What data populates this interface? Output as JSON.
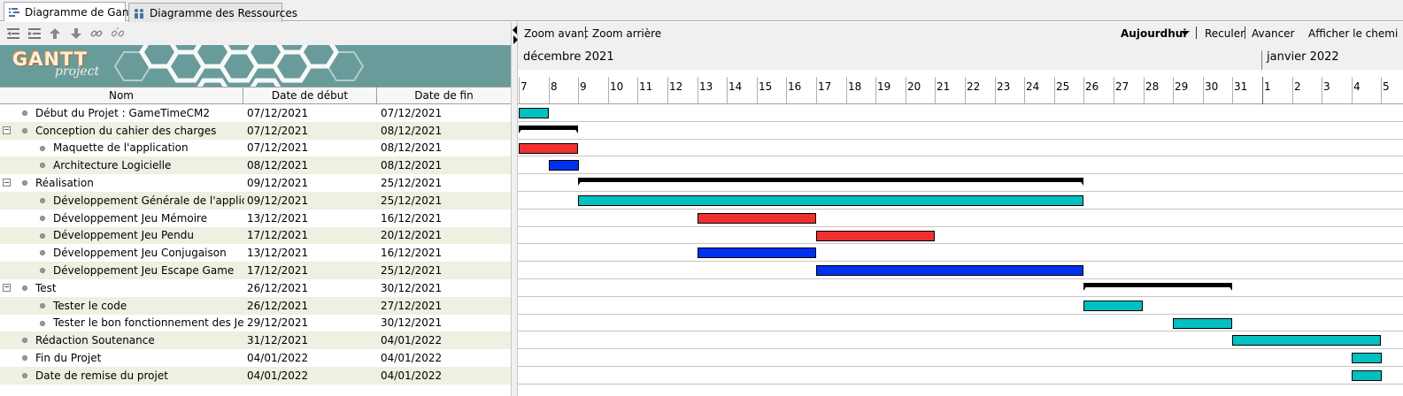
{
  "tabs": [
    {
      "label": "Diagramme de Gantt",
      "icon": "gantt-chart-icon",
      "active": true
    },
    {
      "label": "Diagramme des Ressources",
      "icon": "resources-icon",
      "active": false
    }
  ],
  "left_toolbar": {
    "icons": [
      "outdent-icon",
      "indent-icon",
      "move-up-icon",
      "move-down-icon",
      "link-icon",
      "unlink-icon"
    ]
  },
  "logo": {
    "main": "GANTT",
    "sub": "project"
  },
  "table": {
    "headers": {
      "name": "Nom",
      "start": "Date de début",
      "end": "Date de fin"
    },
    "rows": [
      {
        "name": "Début du Projet : GameTimeCM2",
        "start": "07/12/2021",
        "end": "07/12/2021",
        "level": 0,
        "expander": ""
      },
      {
        "name": "Conception du cahier des charges",
        "start": "07/12/2021",
        "end": "08/12/2021",
        "level": 0,
        "expander": "−"
      },
      {
        "name": "Maquette de l'application",
        "start": "07/12/2021",
        "end": "08/12/2021",
        "level": 1,
        "expander": ""
      },
      {
        "name": "Architecture Logicielle",
        "start": "08/12/2021",
        "end": "08/12/2021",
        "level": 1,
        "expander": ""
      },
      {
        "name": "Réalisation",
        "start": "09/12/2021",
        "end": "25/12/2021",
        "level": 0,
        "expander": "−"
      },
      {
        "name": "Développement Générale de l'application",
        "start": "09/12/2021",
        "end": "25/12/2021",
        "level": 1,
        "expander": ""
      },
      {
        "name": "Développement Jeu Mémoire",
        "start": "13/12/2021",
        "end": "16/12/2021",
        "level": 1,
        "expander": ""
      },
      {
        "name": "Développement Jeu Pendu",
        "start": "17/12/2021",
        "end": "20/12/2021",
        "level": 1,
        "expander": ""
      },
      {
        "name": "Développement Jeu Conjugaison",
        "start": "13/12/2021",
        "end": "16/12/2021",
        "level": 1,
        "expander": ""
      },
      {
        "name": "Développement Jeu Escape Game",
        "start": "17/12/2021",
        "end": "25/12/2021",
        "level": 1,
        "expander": ""
      },
      {
        "name": "Test",
        "start": "26/12/2021",
        "end": "30/12/2021",
        "level": 0,
        "expander": "−"
      },
      {
        "name": "Tester le code",
        "start": "26/12/2021",
        "end": "27/12/2021",
        "level": 1,
        "expander": ""
      },
      {
        "name": "Tester le bon fonctionnement des Jeux",
        "start": "29/12/2021",
        "end": "30/12/2021",
        "level": 1,
        "expander": ""
      },
      {
        "name": "Rédaction Soutenance",
        "start": "31/12/2021",
        "end": "04/01/2022",
        "level": 0,
        "expander": ""
      },
      {
        "name": "Fin du Projet",
        "start": "04/01/2022",
        "end": "04/01/2022",
        "level": 0,
        "expander": ""
      },
      {
        "name": "Date de remise du projet",
        "start": "04/01/2022",
        "end": "04/01/2022",
        "level": 0,
        "expander": ""
      }
    ]
  },
  "right_toolbar": {
    "zoom_in": "Zoom avant",
    "zoom_out": "Zoom arrière",
    "today": "Aujourdhui",
    "back": "Reculer",
    "forward": "Avancer",
    "show_path": "Afficher le chemi"
  },
  "timeline": {
    "months": [
      "décembre 2021",
      "janvier 2022"
    ],
    "days": [
      "7",
      "8",
      "9",
      "10",
      "11",
      "12",
      "13",
      "14",
      "15",
      "16",
      "17",
      "18",
      "19",
      "20",
      "21",
      "22",
      "23",
      "24",
      "25",
      "26",
      "27",
      "28",
      "29",
      "30",
      "31",
      "1",
      "2",
      "3",
      "4",
      "5"
    ]
  },
  "colors": {
    "cyan": "#00c0c0",
    "red": "#f03030",
    "blue": "#0030f0",
    "summary": "#000000"
  },
  "bars": [
    {
      "type": "task",
      "start_day": 0,
      "span_days": 1,
      "color": "cyan"
    },
    {
      "type": "summary",
      "start_day": 0,
      "span_days": 2
    },
    {
      "type": "task",
      "start_day": 0,
      "span_days": 2,
      "color": "red"
    },
    {
      "type": "task",
      "start_day": 1,
      "span_days": 1,
      "color": "blue"
    },
    {
      "type": "summary",
      "start_day": 2,
      "span_days": 17
    },
    {
      "type": "task",
      "start_day": 2,
      "span_days": 17,
      "color": "cyan"
    },
    {
      "type": "task",
      "start_day": 6,
      "span_days": 4,
      "color": "red"
    },
    {
      "type": "task",
      "start_day": 10,
      "span_days": 4,
      "color": "red"
    },
    {
      "type": "task",
      "start_day": 6,
      "span_days": 4,
      "color": "blue"
    },
    {
      "type": "task",
      "start_day": 10,
      "span_days": 9,
      "color": "blue"
    },
    {
      "type": "summary",
      "start_day": 19,
      "span_days": 5
    },
    {
      "type": "task",
      "start_day": 19,
      "span_days": 2,
      "color": "cyan"
    },
    {
      "type": "task",
      "start_day": 22,
      "span_days": 2,
      "color": "cyan"
    },
    {
      "type": "task",
      "start_day": 24,
      "span_days": 5,
      "color": "cyan"
    },
    {
      "type": "task",
      "start_day": 28,
      "span_days": 1,
      "color": "cyan"
    },
    {
      "type": "task",
      "start_day": 28,
      "span_days": 1,
      "color": "cyan"
    }
  ]
}
